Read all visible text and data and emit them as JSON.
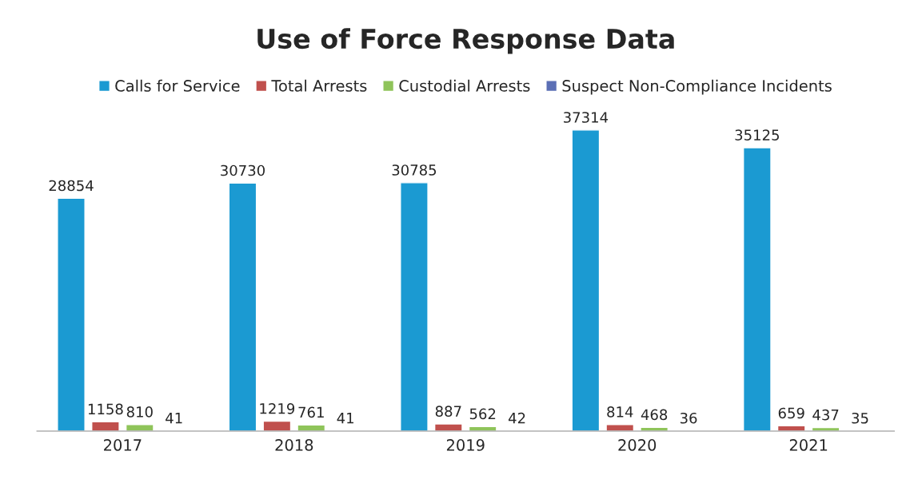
{
  "chart_data": {
    "type": "bar",
    "title": "Use of Force Response Data",
    "categories": [
      "2017",
      "2018",
      "2019",
      "2020",
      "2021"
    ],
    "series": [
      {
        "name": "Calls for Service",
        "color": "#1b9ad2",
        "values": [
          28854,
          30730,
          30785,
          37314,
          35125
        ]
      },
      {
        "name": "Total Arrests",
        "color": "#c0504d",
        "values": [
          1158,
          1219,
          887,
          814,
          659
        ]
      },
      {
        "name": "Custodial Arrests",
        "color": "#8fc45a",
        "values": [
          810,
          761,
          562,
          468,
          437
        ]
      },
      {
        "name": "Suspect Non-Compliance Incidents",
        "color": "#5b6fb5",
        "values": [
          41,
          41,
          42,
          36,
          35
        ]
      }
    ],
    "data_labels": true,
    "legend": "top",
    "grid": false,
    "tick_labels": "x"
  }
}
